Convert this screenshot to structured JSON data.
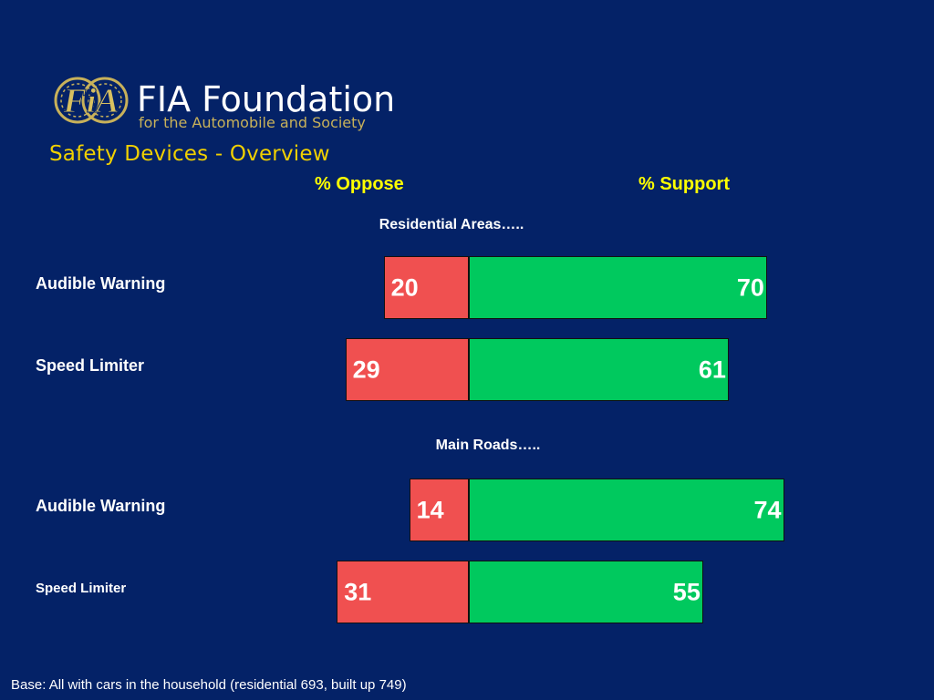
{
  "header": {
    "logo_title": "FIA Foundation",
    "logo_subtitle": "for the Automobile and Society",
    "emblem_text": "FiA",
    "slide_title": "Safety Devices - Overview"
  },
  "chart_data": {
    "type": "bar",
    "orientation": "horizontal-diverging",
    "columns": [
      "% Oppose",
      "% Support"
    ],
    "groups": [
      {
        "label": "Residential Areas…..",
        "rows": [
          {
            "label": "Audible Warning",
            "oppose": 20,
            "support": 70
          },
          {
            "label": "Speed Limiter",
            "oppose": 29,
            "support": 61
          }
        ]
      },
      {
        "label": "Main Roads…..",
        "rows": [
          {
            "label": "Audible Warning",
            "oppose": 14,
            "support": 74
          },
          {
            "label": "Speed Limiter",
            "oppose": 31,
            "support": 55
          }
        ]
      }
    ],
    "colors": {
      "oppose": "#f05050",
      "support": "#00c95e"
    }
  },
  "footnote": "Base: All with cars in the household (residential 693, built up 749)"
}
